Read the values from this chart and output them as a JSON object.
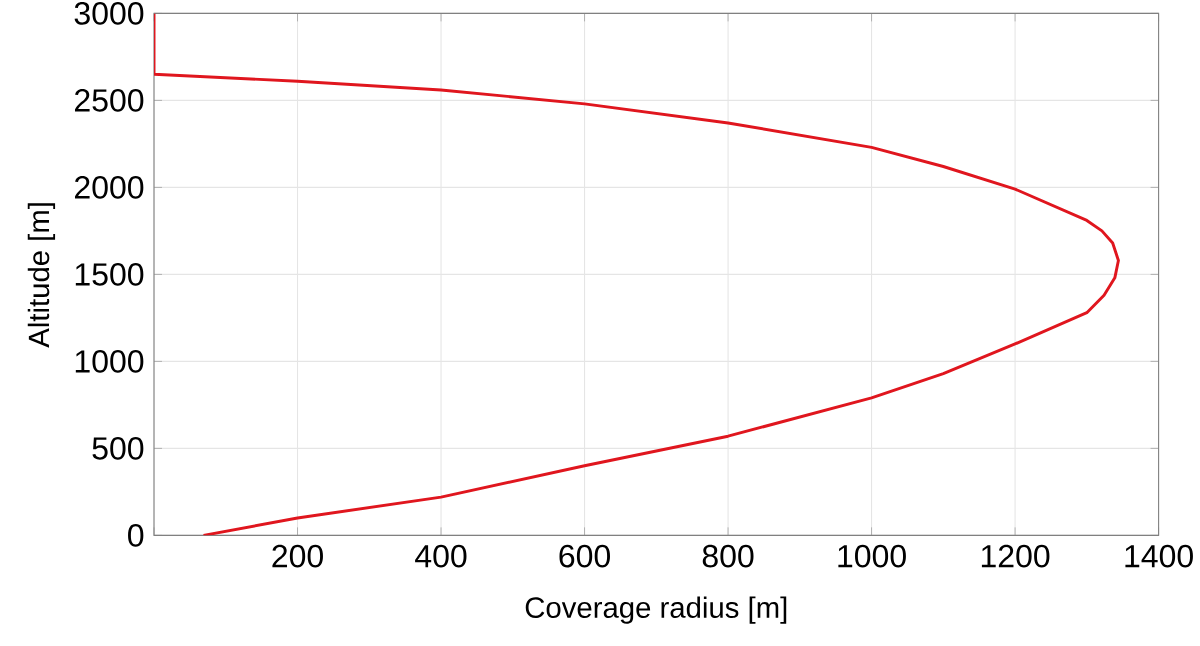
{
  "chart_data": {
    "type": "line",
    "xlabel": "Coverage radius [m]",
    "ylabel": "Altitude [m]",
    "x": [
      69,
      200,
      400,
      600,
      800,
      1000,
      1100,
      1200,
      1300,
      1324,
      1339,
      1344,
      1336,
      1321,
      1300,
      1200,
      1100,
      1000,
      800,
      600,
      400,
      200,
      0,
      0
    ],
    "series": [
      {
        "color": "#e0161e",
        "values": [
          0,
          100,
          220,
          400,
          570,
          790,
          930,
          1100,
          1280,
          1380,
          1480,
          1580,
          1680,
          1750,
          1810,
          1990,
          2120,
          2230,
          2370,
          2480,
          2560,
          2610,
          2650,
          3000
        ]
      }
    ],
    "xlim": [
      0,
      1400
    ],
    "xticks": [
      {
        "value": 0,
        "label": null
      },
      200,
      400,
      600,
      800,
      1000,
      1200,
      1400
    ],
    "ylim": [
      0,
      3000
    ],
    "yticks": [
      0,
      500,
      1000,
      1500,
      2000,
      2500,
      3000
    ],
    "grid": true,
    "marker": "none",
    "line_style": "solid"
  }
}
